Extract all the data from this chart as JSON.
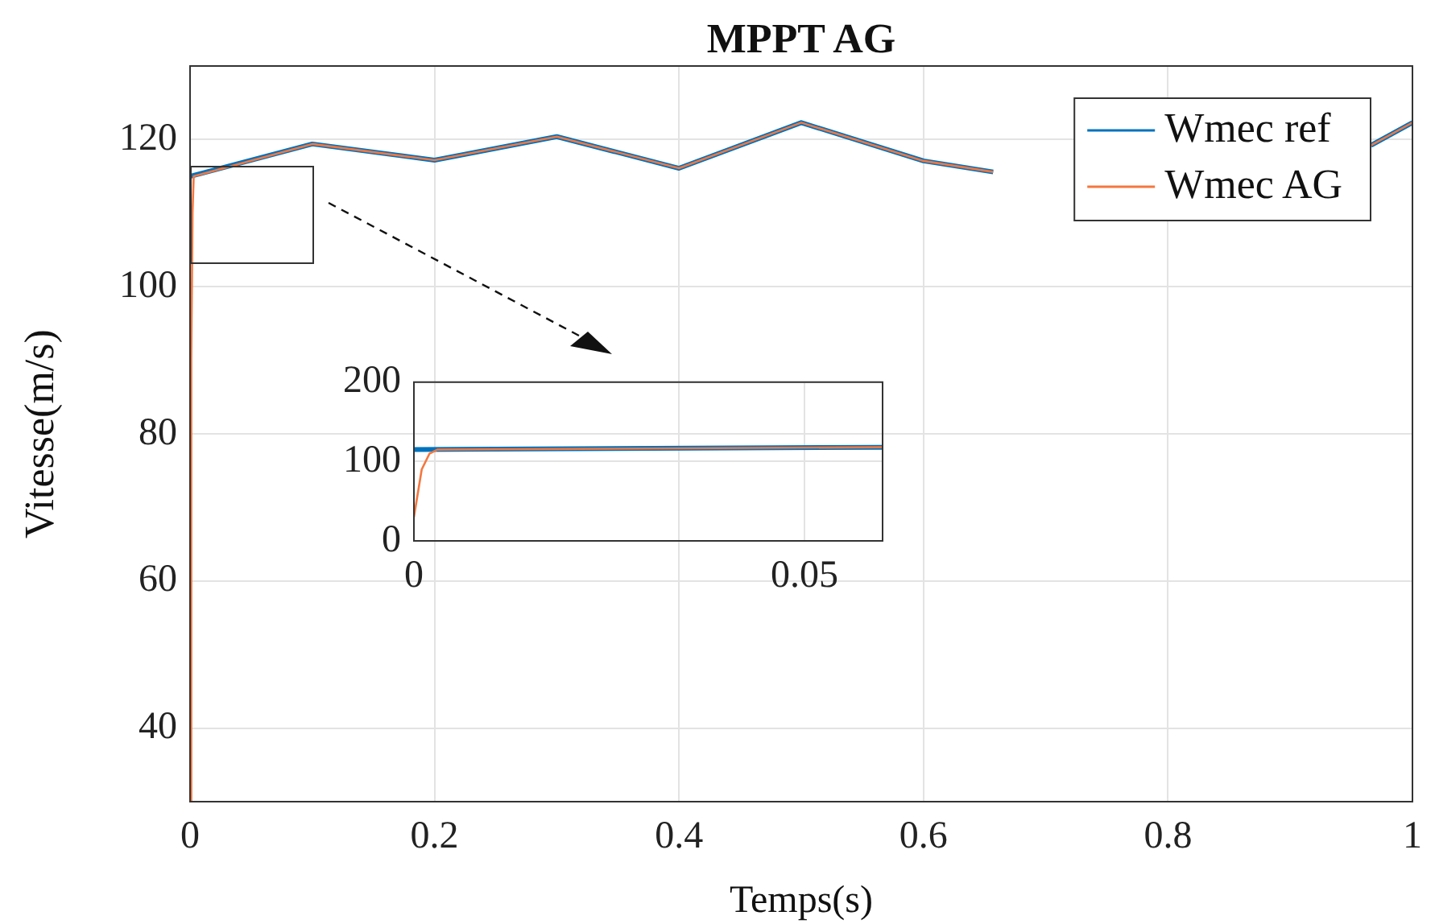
{
  "chart_data": [
    {
      "type": "line",
      "title": "MPPT AG",
      "xlabel": "Temps(s)",
      "ylabel": "Vitesse(m/s)",
      "xlim": [
        0,
        1
      ],
      "xticks": [
        0,
        0.2,
        0.4,
        0.6,
        0.8,
        1
      ],
      "ylim": [
        30,
        130
      ],
      "yticks": [
        40,
        60,
        80,
        100,
        120
      ],
      "grid": true,
      "legend": "top right",
      "marker": "none",
      "line_style": "solid",
      "series": [
        {
          "name": "Wmec ref",
          "color": "#0072bd",
          "x": [
            0,
            0.1,
            0.2,
            0.3,
            0.4,
            0.5,
            0.6,
            0.657,
            0.7,
            0.8,
            0.9,
            0.966,
            1
          ],
          "values": [
            115,
            119.4,
            117.2,
            120.4,
            116.1,
            122.3,
            117.1,
            115.6,
            null,
            null,
            null,
            119.2,
            122.3
          ]
        },
        {
          "name": "Wmec AG",
          "color": "#f4773f",
          "x": [
            0,
            0.001,
            0.002,
            0.003,
            0.1,
            0.2,
            0.3,
            0.4,
            0.5,
            0.6,
            0.657,
            0.7,
            0.8,
            0.9,
            0.966,
            1
          ],
          "values": [
            30,
            90,
            110,
            115,
            119.4,
            117.2,
            120.4,
            116.1,
            122.3,
            117.1,
            115.6,
            null,
            null,
            null,
            119.2,
            122.3
          ]
        }
      ]
    },
    {
      "type": "line",
      "xlim": [
        0,
        0.06
      ],
      "xticks": [
        0,
        0.05
      ],
      "ylim": [
        0,
        200
      ],
      "yticks": [
        0,
        100,
        200
      ],
      "grid": true,
      "marker": "none",
      "line_style": "solid",
      "series": [
        {
          "color": "#0072bd",
          "x": [
            0,
            0.06
          ],
          "values": [
            115,
            118
          ]
        },
        {
          "color": "#f4773f",
          "x": [
            0,
            0.001,
            0.002,
            0.003,
            0.06
          ],
          "values": [
            30,
            90,
            110,
            115,
            118
          ]
        }
      ]
    }
  ]
}
